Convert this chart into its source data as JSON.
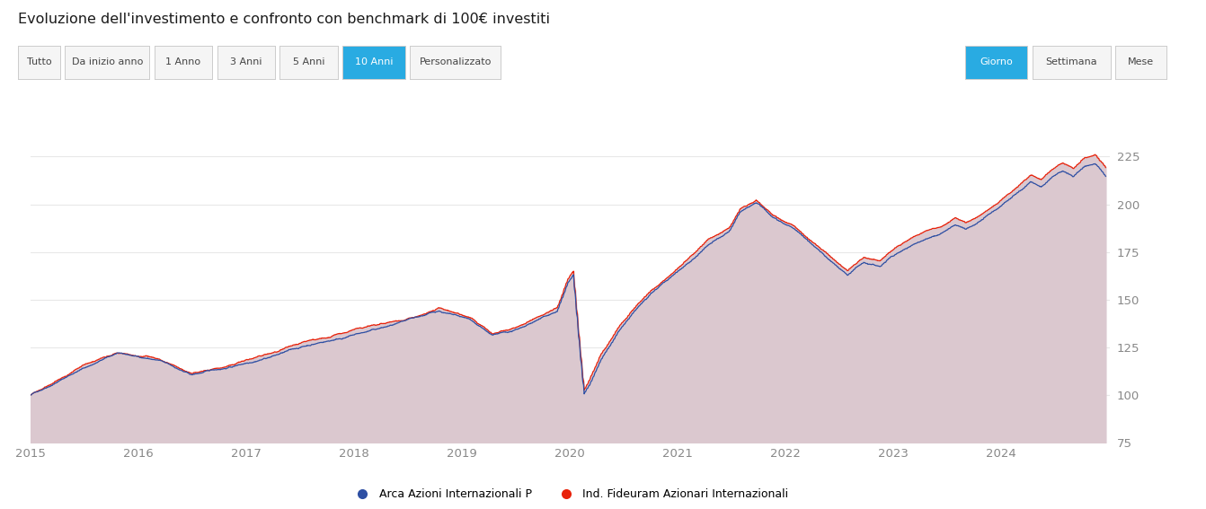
{
  "title": "Evoluzione dell'investimento e confronto con benchmark di 100€ investiti",
  "nav_buttons": [
    "Tutto",
    "Da inizio anno",
    "1 Anno",
    "3 Anni",
    "5 Anni",
    "10 Anni",
    "Personalizzato"
  ],
  "active_button": "10 Anni",
  "right_buttons": [
    "Giorno",
    "Settimana",
    "Mese"
  ],
  "active_right_button": "Giorno",
  "legend_1": "Arca Azioni Internazionali P",
  "legend_2": "Ind. Fideuram Azionari Internazionali",
  "line1_color": "#2e4fa3",
  "line2_color": "#e8220a",
  "fill_color": "#dbc8cf",
  "background_color": "#ffffff",
  "ylim": [
    75,
    235
  ],
  "yticks": [
    75,
    100,
    125,
    150,
    175,
    200,
    225
  ],
  "grid_color": "#e8e8e8",
  "title_fontsize": 11.5,
  "axis_fontsize": 9.5,
  "legend_fontsize": 9,
  "button_active_bg": "#29abe2",
  "button_active_fg": "#ffffff",
  "button_inactive_bg": "#f5f5f5",
  "button_inactive_fg": "#444444",
  "button_border": "#cccccc"
}
